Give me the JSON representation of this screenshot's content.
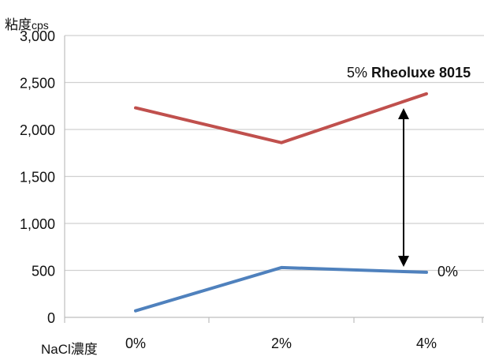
{
  "chart_data": {
    "type": "line",
    "title": "",
    "ylabel_main": "粘度",
    "ylabel_unit": "cps",
    "xlabel": "NaCl濃度",
    "categories": [
      "0%",
      "2%",
      "4%"
    ],
    "ylim": [
      0,
      3000
    ],
    "yticks": [
      0,
      500,
      1000,
      1500,
      2000,
      2500,
      3000
    ],
    "ytick_labels": [
      "0",
      "500",
      "1,000",
      "1,500",
      "2,000",
      "2,500",
      "3,000"
    ],
    "grid": true,
    "series": [
      {
        "name": "5% Rheoluxe 8015",
        "values": [
          2230,
          1860,
          2380
        ],
        "color": "#c0504d"
      },
      {
        "name": "0%",
        "values": [
          70,
          530,
          480
        ],
        "color": "#4f81bd"
      }
    ],
    "annotations": {
      "red_label_prefix": "5% ",
      "red_label_bold": "Rheoluxe 8015",
      "blue_label": "0%",
      "arrow": "double-headed vertical arrow between series at 4%"
    }
  }
}
